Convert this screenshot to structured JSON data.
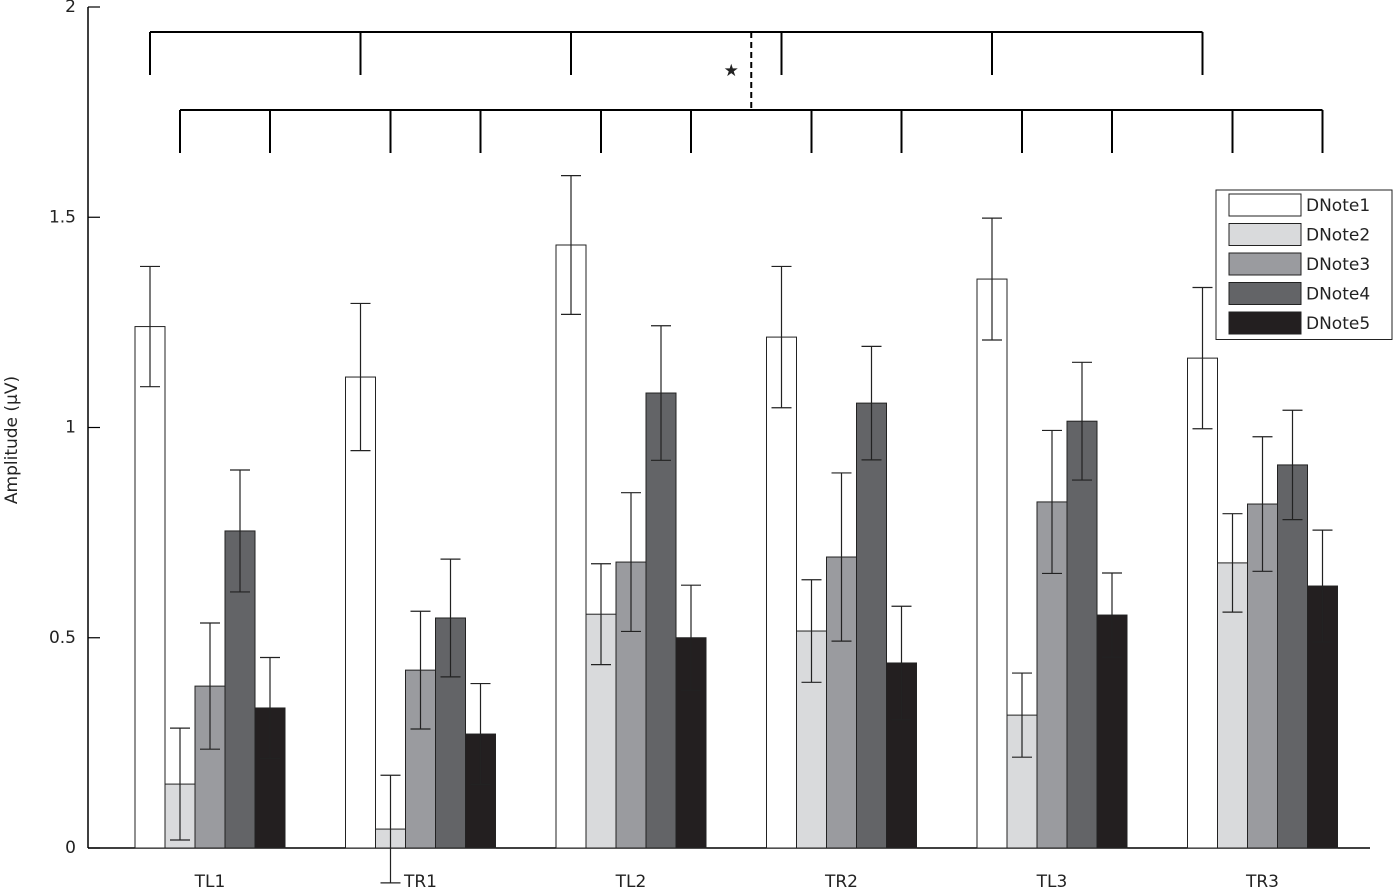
{
  "chart_data": {
    "type": "bar",
    "y_label": "Amplitude (µV)",
    "annotation": "★",
    "categories": [
      "TL1",
      "TR1",
      "TL2",
      "TR2",
      "TL3",
      "TR3"
    ],
    "series": [
      {
        "name": "DNote1",
        "color": "#ffffff",
        "values": [
          1.24,
          1.12,
          1.434,
          1.215,
          1.353,
          1.165
        ],
        "errors": [
          0.143,
          0.175,
          0.165,
          0.168,
          0.145,
          0.168
        ]
      },
      {
        "name": "DNote2",
        "color": "#d9dadc",
        "values": [
          0.152,
          0.045,
          0.556,
          0.516,
          0.316,
          0.678
        ],
        "errors": [
          0.133,
          0.128,
          0.12,
          0.122,
          0.1,
          0.117
        ]
      },
      {
        "name": "DNote3",
        "color": "#9a9b9f",
        "values": [
          0.385,
          0.423,
          0.68,
          0.692,
          0.823,
          0.818
        ],
        "errors": [
          0.15,
          0.14,
          0.165,
          0.2,
          0.17,
          0.16
        ]
      },
      {
        "name": "DNote4",
        "color": "#636467",
        "values": [
          0.754,
          0.547,
          1.082,
          1.058,
          1.015,
          0.911
        ],
        "errors": [
          0.145,
          0.14,
          0.16,
          0.135,
          0.14,
          0.13
        ]
      },
      {
        "name": "DNote5",
        "color": "#231f20",
        "values": [
          0.333,
          0.271,
          0.5,
          0.44,
          0.554,
          0.623
        ],
        "errors": [
          0.12,
          0.12,
          0.125,
          0.135,
          0.1,
          0.133
        ]
      }
    ],
    "ylim": [
      0,
      2
    ],
    "yticks": [
      0,
      0.5,
      1,
      1.5,
      2
    ],
    "legend": "upper right"
  }
}
